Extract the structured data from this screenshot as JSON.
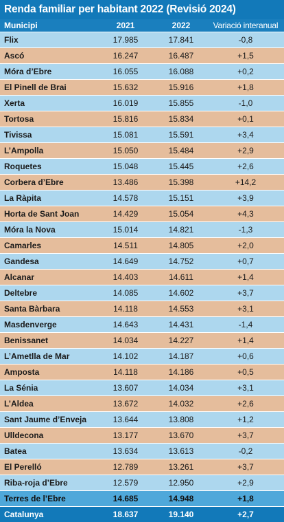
{
  "title": "Renda familiar per habitant 2022 (Revisió 2024)",
  "headers": {
    "municipi": "Municipi",
    "y2021": "2021",
    "y2022": "2022",
    "variacio": "Variació interanual"
  },
  "rows": [
    {
      "municipi": "Flix",
      "y2021": "17.985",
      "y2022": "17.841",
      "variacio": "-0,8"
    },
    {
      "municipi": "Ascó",
      "y2021": "16.247",
      "y2022": "16.487",
      "variacio": "+1,5"
    },
    {
      "municipi": "Móra d’Ebre",
      "y2021": "16.055",
      "y2022": "16.088",
      "variacio": "+0,2"
    },
    {
      "municipi": "El Pinell de Brai",
      "y2021": "15.632",
      "y2022": "15.916",
      "variacio": "+1,8"
    },
    {
      "municipi": "Xerta",
      "y2021": "16.019",
      "y2022": "15.855",
      "variacio": "-1,0"
    },
    {
      "municipi": "Tortosa",
      "y2021": "15.816",
      "y2022": "15.834",
      "variacio": "+0,1"
    },
    {
      "municipi": "Tivissa",
      "y2021": "15.081",
      "y2022": "15.591",
      "variacio": "+3,4"
    },
    {
      "municipi": "L’Ampolla",
      "y2021": "15.050",
      "y2022": "15.484",
      "variacio": "+2,9"
    },
    {
      "municipi": "Roquetes",
      "y2021": "15.048",
      "y2022": "15.445",
      "variacio": "+2,6"
    },
    {
      "municipi": "Corbera d’Ebre",
      "y2021": "13.486",
      "y2022": "15.398",
      "variacio": "+14,2"
    },
    {
      "municipi": "La Ràpita",
      "y2021": "14.578",
      "y2022": "15.151",
      "variacio": "+3,9"
    },
    {
      "municipi": "Horta de Sant Joan",
      "y2021": "14.429",
      "y2022": "15.054",
      "variacio": "+4,3"
    },
    {
      "municipi": "Móra la Nova",
      "y2021": "15.014",
      "y2022": "14.821",
      "variacio": "-1,3"
    },
    {
      "municipi": "Camarles",
      "y2021": "14.511",
      "y2022": "14.805",
      "variacio": "+2,0"
    },
    {
      "municipi": "Gandesa",
      "y2021": "14.649",
      "y2022": "14.752",
      "variacio": "+0,7"
    },
    {
      "municipi": "Alcanar",
      "y2021": "14.403",
      "y2022": "14.611",
      "variacio": "+1,4"
    },
    {
      "municipi": "Deltebre",
      "y2021": "14.085",
      "y2022": "14.602",
      "variacio": "+3,7"
    },
    {
      "municipi": "Santa Bàrbara",
      "y2021": "14.118",
      "y2022": "14.553",
      "variacio": "+3,1"
    },
    {
      "municipi": "Masdenverge",
      "y2021": "14.643",
      "y2022": "14.431",
      "variacio": "-1,4"
    },
    {
      "municipi": "Benissanet",
      "y2021": "14.034",
      "y2022": "14.227",
      "variacio": "+1,4"
    },
    {
      "municipi": "L’Ametlla de Mar",
      "y2021": "14.102",
      "y2022": "14.187",
      "variacio": "+0,6"
    },
    {
      "municipi": "Amposta",
      "y2021": "14.118",
      "y2022": "14.186",
      "variacio": "+0,5"
    },
    {
      "municipi": "La Sénia",
      "y2021": "13.607",
      "y2022": "14.034",
      "variacio": "+3,1"
    },
    {
      "municipi": "L’Aldea",
      "y2021": "13.672",
      "y2022": "14.032",
      "variacio": "+2,6"
    },
    {
      "municipi": "Sant Jaume d’Enveja",
      "y2021": "13.644",
      "y2022": "13.808",
      "variacio": "+1,2"
    },
    {
      "municipi": "Ulldecona",
      "y2021": "13.177",
      "y2022": "13.670",
      "variacio": "+3,7"
    },
    {
      "municipi": "Batea",
      "y2021": "13.634",
      "y2022": "13.613",
      "variacio": "-0,2"
    },
    {
      "municipi": "El Perelló",
      "y2021": "12.789",
      "y2022": "13.261",
      "variacio": "+3,7"
    },
    {
      "municipi": "Riba-roja d’Ebre",
      "y2021": "12.579",
      "y2022": "12.950",
      "variacio": "+2,9"
    }
  ],
  "totals": [
    {
      "municipi": "Terres de l’Ebre",
      "y2021": "14.685",
      "y2022": "14.948",
      "variacio": "+1,8"
    },
    {
      "municipi": "Catalunya",
      "y2021": "18.637",
      "y2022": "19.140",
      "variacio": "+2,7"
    }
  ],
  "colors": {
    "header_blue": "#1279b9",
    "row_light_blue": "#add7ee",
    "row_tan": "#e5bd9c",
    "total_mid_blue": "#4fa8da"
  }
}
